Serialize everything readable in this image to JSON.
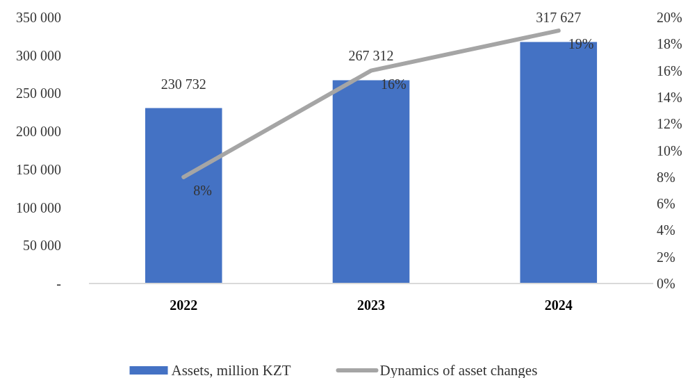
{
  "chart_data": {
    "type": "bar",
    "categories": [
      "2022",
      "2023",
      "2024"
    ],
    "series": [
      {
        "name": "Assets, million KZT",
        "color": "#4472c4",
        "values": [
          230732,
          267312,
          317627
        ],
        "value_labels": [
          "230 732",
          "267 312",
          "317 627"
        ]
      },
      {
        "name": "Dynamics of asset changes",
        "type": "line",
        "axis": "y2",
        "color": "#a5a5a5",
        "values": [
          8,
          16,
          19
        ],
        "value_labels": [
          "8%",
          "16%",
          "19%"
        ]
      }
    ],
    "ylim": [
      0,
      350000
    ],
    "yticks": [
      {
        "value": 0,
        "label": "-"
      },
      {
        "value": 50000,
        "label": "50 000"
      },
      {
        "value": 100000,
        "label": "100 000"
      },
      {
        "value": 150000,
        "label": "150 000"
      },
      {
        "value": 200000,
        "label": "200 000"
      },
      {
        "value": 250000,
        "label": "250 000"
      },
      {
        "value": 300000,
        "label": "300 000"
      },
      {
        "value": 350000,
        "label": "350 000"
      }
    ],
    "y2lim": [
      0,
      20
    ],
    "y2ticks": [
      {
        "value": 0,
        "label": "0%"
      },
      {
        "value": 2,
        "label": "2%"
      },
      {
        "value": 4,
        "label": "4%"
      },
      {
        "value": 6,
        "label": "6%"
      },
      {
        "value": 8,
        "label": "8%"
      },
      {
        "value": 10,
        "label": "10%"
      },
      {
        "value": 12,
        "label": "12%"
      },
      {
        "value": 14,
        "label": "14%"
      },
      {
        "value": 16,
        "label": "16%"
      },
      {
        "value": 18,
        "label": "18%"
      },
      {
        "value": 20,
        "label": "20%"
      }
    ],
    "legend": "bottom",
    "grid": false
  }
}
